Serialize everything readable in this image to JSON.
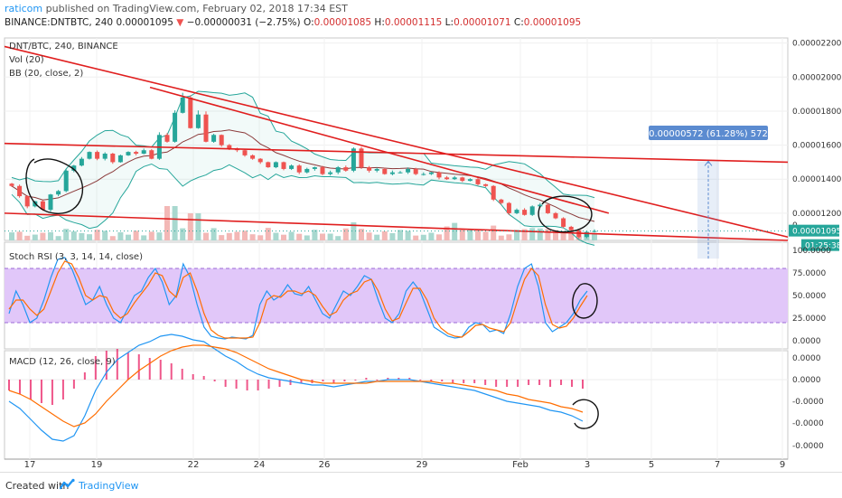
{
  "header": {
    "author": "raticom",
    "published": "published on TradingView.com, February 02, 2018 17:34 EST",
    "symbol": "BINANCE:DNTBTC, 240",
    "last": "0.00001095",
    "change": "−0.00000031 (−2.75%)",
    "ohlc": {
      "o_label": "O:",
      "o": "0.00001085",
      "h_label": "H:",
      "h": "0.00001115",
      "l_label": "L:",
      "l": "0.00001071",
      "c_label": "C:",
      "c": "0.00001095"
    }
  },
  "panes": {
    "main": {
      "title": "DNT/BTC, 240, BINANCE",
      "vol": "Vol (20)",
      "bb": "BB (20, close, 2)"
    },
    "rsi": {
      "title": "Stoch RSI (3, 3, 14, 14, close)"
    },
    "macd": {
      "title": "MACD (12, 26, close, 9)"
    }
  },
  "labels": {
    "measure": "0.00000572 (61.28%) 572",
    "price_tag": "0.00001095",
    "timer": "01:25:38",
    "partial_tick": "0."
  },
  "footer": {
    "created": "Created with",
    "brand": "TradingView"
  },
  "colors": {
    "up": "#26a69a",
    "down": "#ef5350",
    "trend": "#e01e1e",
    "bb": "#26a69a",
    "rsi_band": "#e1c7f9",
    "k": "#2196f3",
    "d": "#ff6d00",
    "measure": "#5b8bd0"
  },
  "chart_data": [
    {
      "type": "candlestick",
      "title": "DNT/BTC, 240, BINANCE",
      "x_ticks": [
        "17",
        "19",
        "22",
        "24",
        "26",
        "29",
        "Feb",
        "3",
        "5",
        "7",
        "9"
      ],
      "y_ticks": [
        "0.00002200",
        "0.00002000",
        "0.00001800",
        "0.00001600",
        "0.00001400",
        "0.00001200"
      ],
      "ylim": [
        1.04e-05,
        2.23e-05
      ],
      "last_price": 1.095e-05,
      "close_series": [
        1.36,
        1.3,
        1.24,
        1.27,
        1.22,
        1.31,
        1.33,
        1.45,
        1.48,
        1.52,
        1.56,
        1.52,
        1.55,
        1.5,
        1.54,
        1.56,
        1.55,
        1.57,
        1.52,
        1.66,
        1.62,
        1.79,
        1.88,
        1.7,
        1.78,
        1.62,
        1.66,
        1.6,
        1.58,
        1.57,
        1.54,
        1.52,
        1.5,
        1.47,
        1.5,
        1.46,
        1.48,
        1.44,
        1.46,
        1.47,
        1.43,
        1.44,
        1.47,
        1.45,
        1.58,
        1.47,
        1.45,
        1.46,
        1.43,
        1.44,
        1.44,
        1.46,
        1.43,
        1.43,
        1.44,
        1.41,
        1.4,
        1.41,
        1.39,
        1.4,
        1.37,
        1.36,
        1.28,
        1.26,
        1.2,
        1.22,
        1.19,
        1.24,
        1.25,
        1.2,
        1.17,
        1.12,
        1.1,
        1.06,
        1.09,
        1.095
      ],
      "trendlines": [
        {
          "from": [
            0,
            2.18e-05
          ],
          "to": [
            140,
            1.06e-05
          ]
        },
        {
          "from": [
            0,
            1.61e-05
          ],
          "to": [
            140,
            1.5e-05
          ]
        },
        {
          "from": [
            0,
            1.2e-05
          ],
          "to": [
            140,
            1.04e-05
          ]
        },
        {
          "from": [
            26,
            1.94e-05
          ],
          "to": [
            108,
            1.2e-05
          ]
        }
      ],
      "measure": {
        "value": "0.00000572 (61.28%) 572",
        "from": 9.33e-06,
        "to": 1.505e-05
      }
    },
    {
      "type": "line",
      "title": "Stoch RSI (3, 3, 14, 14, close)",
      "y_ticks": [
        "100.0000",
        "75.0000",
        "50.0000",
        "25.0000",
        "0.0000"
      ],
      "ylim": [
        0,
        100
      ],
      "bands": [
        20,
        80
      ],
      "series": [
        {
          "name": "K",
          "values": [
            30,
            55,
            40,
            20,
            25,
            45,
            70,
            90,
            92,
            80,
            60,
            40,
            45,
            60,
            40,
            25,
            20,
            35,
            50,
            55,
            70,
            80,
            65,
            40,
            50,
            85,
            70,
            40,
            15,
            5,
            3,
            2,
            4,
            3,
            2,
            6,
            40,
            55,
            45,
            50,
            62,
            52,
            50,
            60,
            45,
            30,
            25,
            40,
            55,
            50,
            60,
            72,
            68,
            45,
            25,
            20,
            30,
            55,
            65,
            55,
            35,
            15,
            10,
            5,
            3,
            4,
            15,
            20,
            18,
            10,
            12,
            8,
            30,
            60,
            80,
            85,
            60,
            20,
            10,
            15,
            20,
            30,
            45,
            55
          ]
        },
        {
          "name": "D",
          "values": [
            35,
            45,
            45,
            35,
            28,
            35,
            55,
            75,
            88,
            85,
            70,
            50,
            45,
            50,
            48,
            32,
            25,
            30,
            42,
            52,
            62,
            75,
            72,
            55,
            48,
            70,
            75,
            55,
            30,
            12,
            6,
            3,
            3,
            3,
            3,
            4,
            20,
            45,
            50,
            48,
            55,
            55,
            52,
            55,
            50,
            38,
            28,
            32,
            45,
            52,
            55,
            65,
            68,
            55,
            35,
            22,
            25,
            42,
            58,
            58,
            45,
            25,
            14,
            8,
            5,
            4,
            10,
            17,
            18,
            14,
            12,
            10,
            20,
            45,
            68,
            80,
            72,
            40,
            18,
            14,
            16,
            25,
            38,
            50
          ]
        }
      ]
    },
    {
      "type": "line",
      "title": "MACD (12, 26, close, 9)",
      "y_ticks": [
        "0.0000",
        "0.0000",
        "-0.0000",
        "-0.0000",
        "-0.0000"
      ],
      "series": [
        {
          "name": "MACD",
          "values": [
            -12,
            -16,
            -22,
            -28,
            -33,
            -34,
            -31,
            -20,
            -6,
            4,
            11,
            15,
            19,
            21,
            24,
            25,
            24,
            22,
            21,
            17,
            13,
            10,
            6,
            3,
            1,
            0,
            -1,
            -2,
            -3,
            -3,
            -4,
            -3,
            -2,
            -1,
            -1,
            0,
            0,
            0,
            -1,
            -2,
            -3,
            -4,
            -5,
            -6,
            -8,
            -10,
            -12,
            -13,
            -14,
            -15,
            -17,
            -18,
            -20,
            -23
          ]
        },
        {
          "name": "Signal",
          "values": [
            -6,
            -8,
            -11,
            -15,
            -19,
            -23,
            -26,
            -24,
            -19,
            -12,
            -6,
            0,
            5,
            9,
            13,
            16,
            18,
            19,
            19,
            18,
            17,
            15,
            12,
            9,
            6,
            4,
            2,
            0,
            -1,
            -2,
            -2,
            -2,
            -2,
            -2,
            -1,
            -1,
            -1,
            -1,
            -1,
            -1,
            -2,
            -2,
            -3,
            -4,
            -5,
            -6,
            -8,
            -9,
            -11,
            -12,
            -13,
            -15,
            -16,
            -18
          ]
        },
        {
          "name": "Histogram",
          "values": [
            -6,
            -8,
            -11,
            -13,
            -14,
            -11,
            -5,
            4,
            13,
            16,
            17,
            15,
            14,
            12,
            11,
            9,
            6,
            3,
            2,
            -1,
            -4,
            -5,
            -6,
            -6,
            -5,
            -4,
            -3,
            -2,
            -2,
            -1,
            -2,
            -1,
            0,
            1,
            0,
            1,
            1,
            1,
            0,
            -1,
            -1,
            -2,
            -2,
            -2,
            -3,
            -4,
            -4,
            -4,
            -3,
            -3,
            -4,
            -3,
            -4,
            -5
          ]
        }
      ]
    }
  ]
}
